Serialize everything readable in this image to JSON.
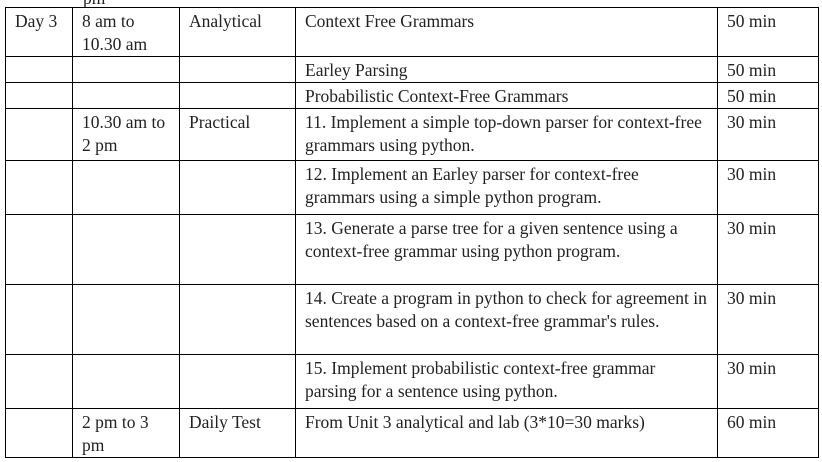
{
  "cut_off_text": "pm",
  "rows": [
    {
      "day": "Day 3",
      "time": "8 am to 10.30 am",
      "mode": "Analytical",
      "topic": "Context Free Grammars",
      "duration": "50 min"
    },
    {
      "day": "",
      "time": "",
      "mode": "",
      "topic": "Earley Parsing",
      "duration": "50 min"
    },
    {
      "day": "",
      "time": "",
      "mode": "",
      "topic": "Probabilistic Context-Free Grammars",
      "duration": "50 min"
    },
    {
      "day": "",
      "time": "10.30 am to 2 pm",
      "mode": "Practical",
      "topic": "11. Implement a simple top-down parser for context-free grammars using python.",
      "duration": "30 min"
    },
    {
      "day": "",
      "time": "",
      "mode": "",
      "topic": "12. Implement an Earley parser for context-free grammars using a simple python program.",
      "duration": "30 min"
    },
    {
      "day": "",
      "time": "",
      "mode": "",
      "topic": "13. Generate a parse tree for a given sentence using a context-free grammar using python program.",
      "duration": "30 min"
    },
    {
      "day": "",
      "time": "",
      "mode": "",
      "topic": "14. Create a program in python to check for agreement in sentences based on a context-free grammar's rules.",
      "duration": "30 min"
    },
    {
      "day": "",
      "time": "",
      "mode": "",
      "topic": "15. Implement probabilistic context-free grammar parsing for a sentence using python.",
      "duration": "30 min"
    },
    {
      "day": "",
      "time": "2 pm to 3 pm",
      "mode": "Daily Test",
      "topic": "From Unit 3 analytical and lab (3*10=30 marks)",
      "duration": "60 min"
    }
  ]
}
